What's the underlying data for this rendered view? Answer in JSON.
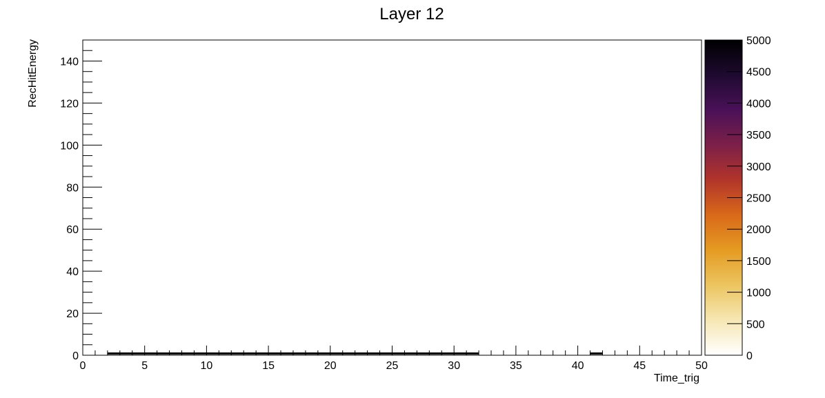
{
  "chart_data": {
    "type": "heatmap",
    "title": "Layer 12",
    "xlabel": "Time_trig",
    "ylabel": "RecHitEnergy",
    "xlim": [
      0,
      50
    ],
    "ylim": [
      0,
      150
    ],
    "x_ticks": [
      0,
      5,
      10,
      15,
      20,
      25,
      30,
      35,
      40,
      45,
      50
    ],
    "y_ticks": [
      0,
      20,
      40,
      60,
      80,
      100,
      120,
      140
    ],
    "colorbar": {
      "zlim": [
        0,
        5000
      ],
      "ticks": [
        0,
        500,
        1000,
        1500,
        2000,
        2500,
        3000,
        3500,
        4000,
        4500,
        5000
      ],
      "palette": [
        "#ffffff",
        "#f6e7b4",
        "#ecc560",
        "#e59b22",
        "#d9691a",
        "#b2352a",
        "#7d1f48",
        "#4a1158",
        "#1e0a30",
        "#000000"
      ]
    },
    "grid": false,
    "cells": [
      {
        "x0": 2,
        "x1": 32,
        "y0": 0,
        "y1": 1,
        "z": 5000
      },
      {
        "x0": 41,
        "x1": 42,
        "y0": 0,
        "y1": 1,
        "z": 5000
      }
    ]
  }
}
